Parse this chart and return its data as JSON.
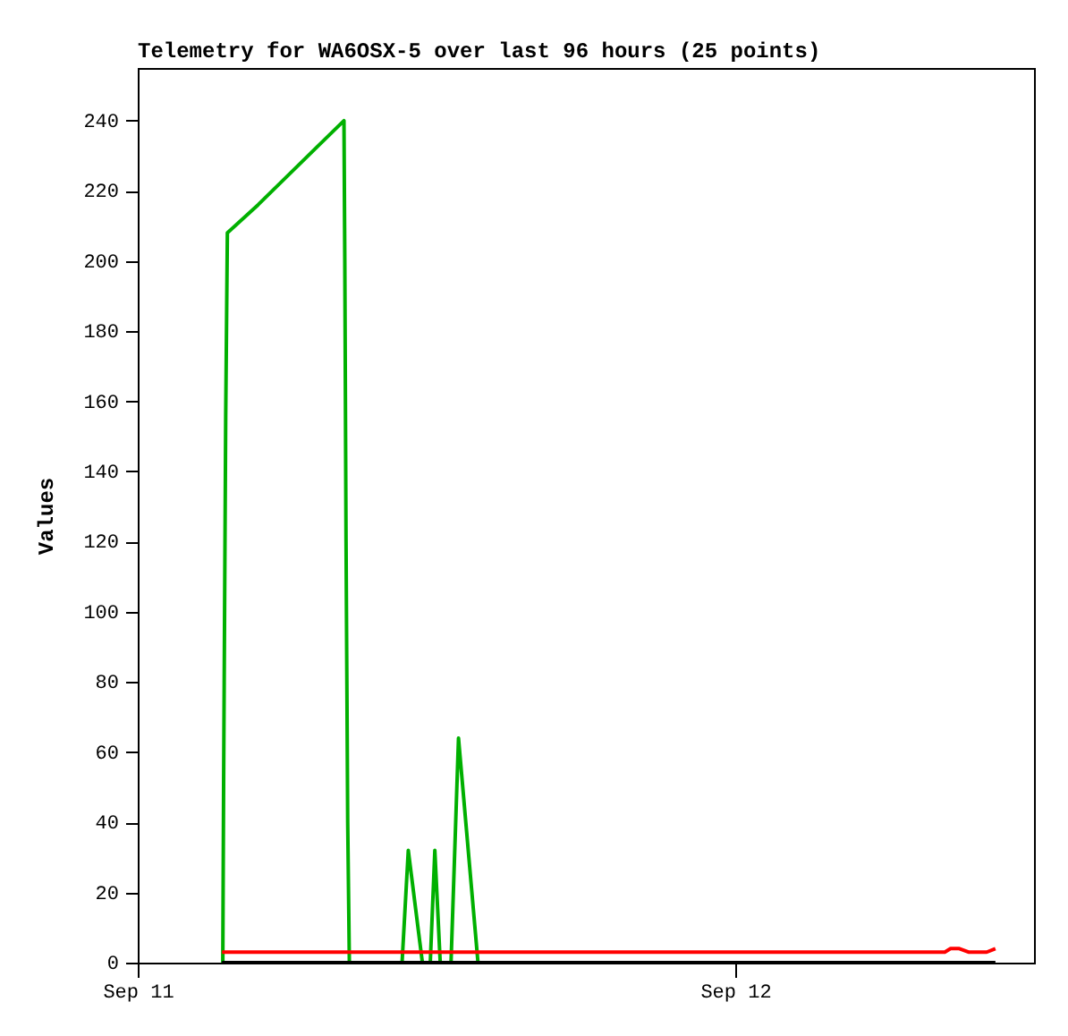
{
  "chart_data": {
    "type": "line",
    "title": "Telemetry for WA6OSX-5 over last 96 hours (25 points)",
    "ylabel": "Values",
    "xlim": [
      "--09-11T00:00",
      "--09-12T12:00"
    ],
    "xticks": [
      {
        "value": "--09-11T00:00",
        "label": "Sep 11"
      },
      {
        "value": "--09-12T00:00",
        "label": "Sep 12"
      }
    ],
    "ylim": [
      0,
      255
    ],
    "yticks": [
      0,
      20,
      40,
      60,
      80,
      100,
      120,
      140,
      160,
      180,
      200,
      220,
      240
    ],
    "grid": false,
    "legend": false,
    "marker": "none",
    "line_style": "solid",
    "series": [
      {
        "color": "#00b000",
        "x": [
          "--09-11T03:25",
          "--09-11T03:27",
          "--09-11T03:32",
          "--09-11T03:36",
          "--09-11T04:50",
          "--09-11T07:08",
          "--09-11T08:17",
          "--09-11T08:19",
          "--09-11T08:22",
          "--09-11T08:26",
          "--09-11T08:30",
          "--09-11T10:37",
          "--09-11T10:52",
          "--09-11T11:26",
          "--09-11T11:45",
          "--09-11T11:56",
          "--09-11T12:09",
          "--09-11T12:35",
          "--09-11T12:53",
          "--09-11T13:40"
        ],
        "values": [
          0,
          52,
          156,
          208,
          216,
          232,
          240,
          200,
          120,
          40,
          0,
          0,
          32,
          0,
          0,
          32,
          0,
          0,
          64,
          0
        ]
      },
      {
        "color": "#ff0000",
        "x": [
          "--09-11T03:23",
          "--09-12T08:25",
          "--09-12T08:39",
          "--09-12T09:00",
          "--09-12T09:22",
          "--09-12T10:06",
          "--09-12T10:27"
        ],
        "values": [
          3,
          3,
          4,
          4,
          3,
          3,
          4
        ]
      },
      {
        "color": "#000000",
        "x": [
          "--09-11T03:23",
          "--09-12T10:27"
        ],
        "values": [
          0,
          0
        ]
      }
    ]
  }
}
